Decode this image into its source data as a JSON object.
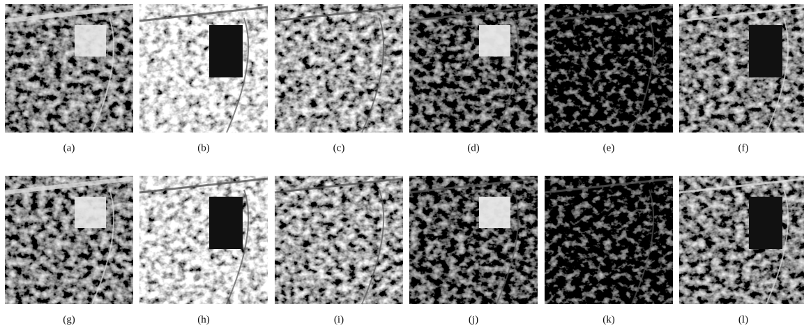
{
  "figure": {
    "captions": [
      "(a)",
      "(b)",
      "(c)",
      "(d)",
      "(e)",
      "(f)",
      "(g)",
      "(h)",
      "(i)",
      "(j)",
      "(k)",
      "(l)"
    ]
  }
}
